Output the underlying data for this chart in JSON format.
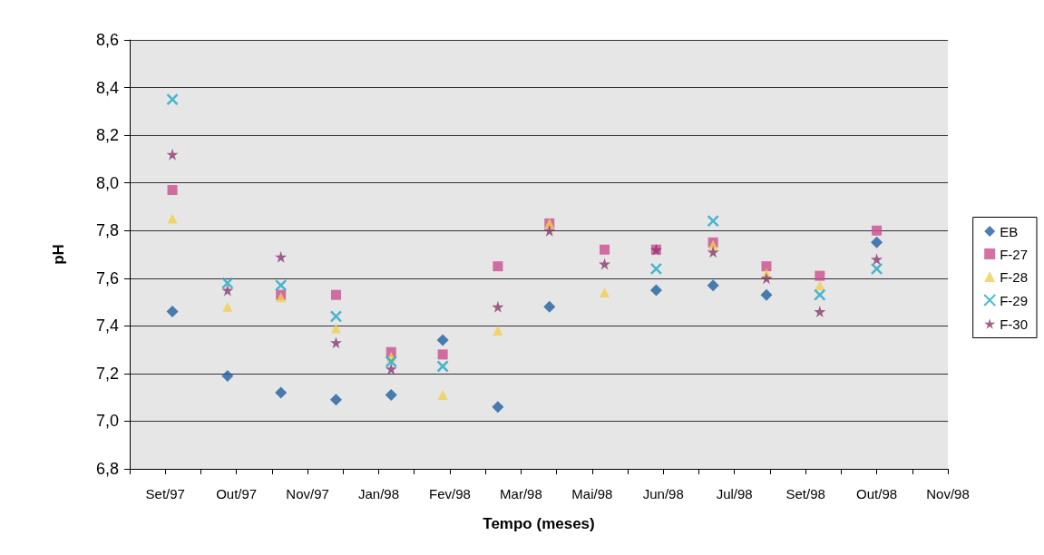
{
  "chart_data": {
    "type": "scatter",
    "xlabel": "Tempo (meses)",
    "ylabel": "pH",
    "xlim": [
      "1997-08-20",
      "1998-11-23"
    ],
    "xticks": [
      {
        "value": "1997-08-20",
        "label": null
      },
      {
        "value": "1997-09-29",
        "label": null
      },
      {
        "value": "1997-11-08",
        "label": null
      },
      {
        "value": "1997-12-18",
        "label": null
      },
      {
        "value": "1998-01-27",
        "label": null
      },
      {
        "value": "1998-03-08",
        "label": null
      },
      {
        "value": "1998-04-17",
        "label": null
      },
      {
        "value": "1998-05-27",
        "label": null
      },
      {
        "value": "1998-07-06",
        "label": null
      },
      {
        "value": "1998-08-15",
        "label": null
      },
      {
        "value": "1998-09-24",
        "label": null
      },
      {
        "value": "1998-11-03",
        "label": null
      },
      {
        "value": "1997-09-09",
        "label": "Set/97"
      },
      {
        "value": "1997-10-19",
        "label": "Out/97"
      },
      {
        "value": "1997-11-28",
        "label": "Nov/97"
      },
      {
        "value": "1998-01-07",
        "label": "Jan/98"
      },
      {
        "value": "1998-02-16",
        "label": "Fev/98"
      },
      {
        "value": "1998-03-28",
        "label": "Mar/98"
      },
      {
        "value": "1998-05-07",
        "label": "Mai/98"
      },
      {
        "value": "1998-06-16",
        "label": "Jun/98"
      },
      {
        "value": "1998-07-26",
        "label": "Jul/98"
      },
      {
        "value": "1998-09-04",
        "label": "Set/98"
      },
      {
        "value": "1998-10-14",
        "label": "Out/98"
      },
      {
        "value": "1998-11-23",
        "label": "Nov/98"
      }
    ],
    "ylim": [
      6.8,
      8.6
    ],
    "yticks": [
      {
        "value": 6.8,
        "label": "6,8"
      },
      {
        "value": 7.0,
        "label": "7,0"
      },
      {
        "value": 7.2,
        "label": "7,2"
      },
      {
        "value": 7.4,
        "label": "7,4"
      },
      {
        "value": 7.6,
        "label": "7,6"
      },
      {
        "value": 7.8,
        "label": "7,8"
      },
      {
        "value": 8.0,
        "label": "8,0"
      },
      {
        "value": 8.2,
        "label": "8,2"
      },
      {
        "value": 8.4,
        "label": "8,4"
      },
      {
        "value": 8.6,
        "label": "8,6"
      }
    ],
    "grid": "y",
    "legend": "right",
    "x": [
      "1997-09-13",
      "1997-10-14",
      "1997-11-13",
      "1997-12-14",
      "1998-01-14",
      "1998-02-12",
      "1998-03-15",
      "1998-04-13",
      "1998-05-14",
      "1998-06-12",
      "1998-07-14",
      "1998-08-13",
      "1998-09-12",
      "1998-10-14"
    ],
    "series": [
      {
        "name": "EB",
        "color": "#1f5f9f",
        "marker": "diamond",
        "values": [
          7.46,
          7.19,
          7.12,
          7.09,
          7.11,
          7.34,
          7.06,
          7.48,
          null,
          7.55,
          7.57,
          7.53,
          null,
          7.75
        ]
      },
      {
        "name": "F-27",
        "color": "#cc4d8f",
        "marker": "square",
        "values": [
          7.97,
          null,
          7.53,
          7.53,
          7.29,
          7.28,
          7.65,
          7.83,
          7.72,
          7.72,
          7.75,
          7.65,
          7.61,
          7.8
        ]
      },
      {
        "name": "F-28",
        "color": "#f0d050",
        "marker": "triangle",
        "values": [
          7.85,
          7.48,
          7.52,
          7.39,
          7.27,
          7.11,
          7.38,
          7.83,
          7.54,
          null,
          7.74,
          7.62,
          7.57,
          null
        ]
      },
      {
        "name": "F-29",
        "color": "#20a8c8",
        "marker": "cross",
        "values": [
          8.35,
          7.58,
          7.57,
          7.44,
          7.25,
          7.23,
          null,
          null,
          null,
          7.64,
          7.84,
          null,
          7.53,
          7.64
        ]
      },
      {
        "name": "F-30",
        "color": "#8a3a70",
        "marker": "star",
        "values": [
          8.12,
          7.55,
          7.69,
          7.33,
          7.22,
          null,
          7.48,
          7.8,
          7.66,
          7.72,
          7.71,
          7.6,
          7.46,
          7.68
        ]
      }
    ]
  }
}
